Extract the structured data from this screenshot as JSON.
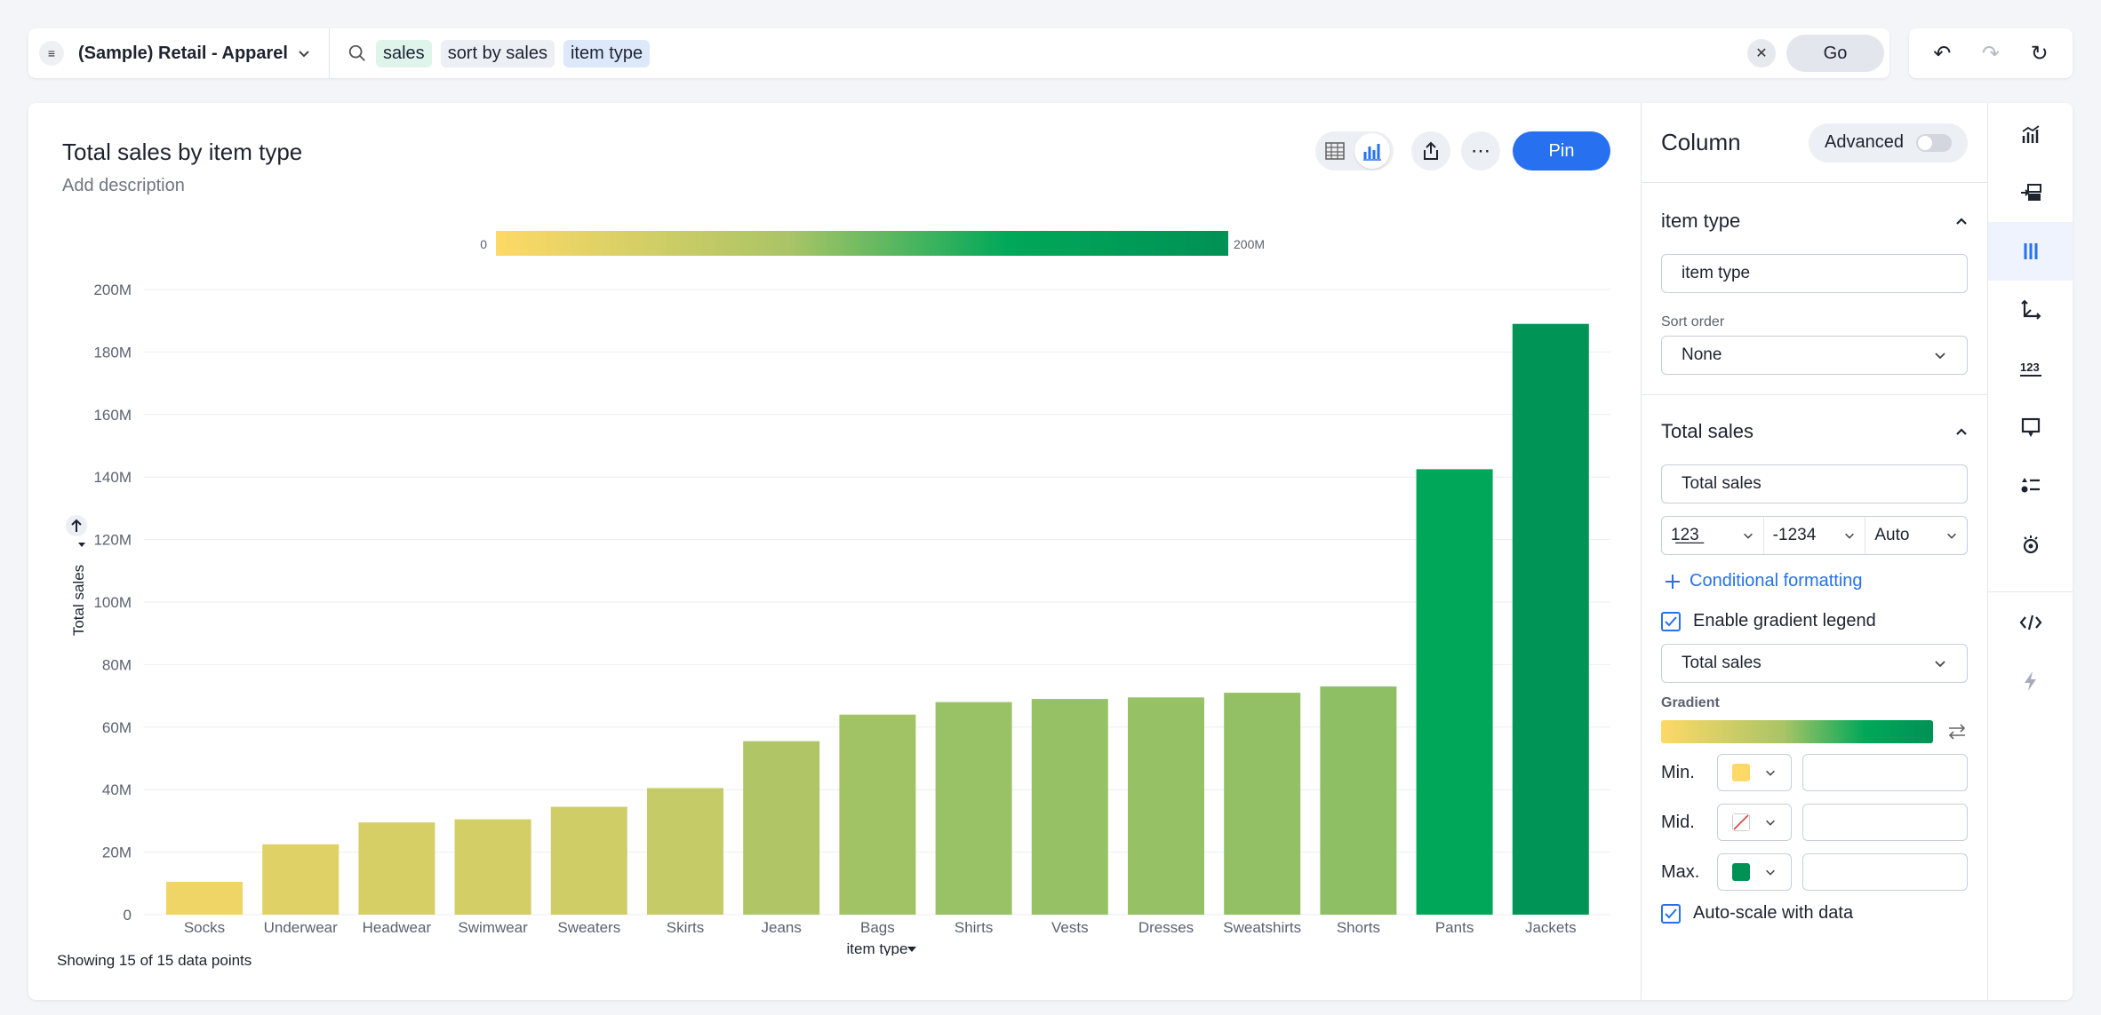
{
  "search": {
    "datasource": "(Sample) Retail - Apparel",
    "tokens": [
      "sales",
      "sort by sales",
      "item type"
    ],
    "go_label": "Go"
  },
  "answer": {
    "title": "Total sales by item type",
    "description_placeholder": "Add description",
    "pin_label": "Pin",
    "footer": "Showing 15 of 15 data points"
  },
  "colors": {
    "accent": "#2770ef",
    "gradient_min": "#fed966",
    "gradient_max": "#009155"
  },
  "chart_data": {
    "type": "bar",
    "categories": [
      "Socks",
      "Underwear",
      "Headwear",
      "Swimwear",
      "Sweaters",
      "Skirts",
      "Jeans",
      "Bags",
      "Shirts",
      "Vests",
      "Dresses",
      "Sweatshirts",
      "Shorts",
      "Pants",
      "Jackets"
    ],
    "values": [
      10.5,
      22.5,
      29.5,
      30.5,
      34.5,
      40.5,
      55.5,
      64,
      68,
      69,
      69.5,
      71,
      73,
      142.5,
      189
    ],
    "value_unit": "M",
    "xlabel": "item type",
    "ylabel": "Total sales",
    "ylim": [
      0,
      200
    ],
    "yticks": [
      "0",
      "20M",
      "40M",
      "60M",
      "80M",
      "100M",
      "120M",
      "140M",
      "160M",
      "180M",
      "200M"
    ],
    "gradient_legend": {
      "min_label": "0",
      "max_label": "200M"
    },
    "grid": true
  },
  "panel": {
    "title": "Column",
    "advanced_label": "Advanced",
    "section1": {
      "header": "item type",
      "name_value": "item type",
      "sort_label": "Sort order",
      "sort_value": "None"
    },
    "section2": {
      "header": "Total sales",
      "name_value": "Total sales",
      "format_category": "1̲2̲3̲",
      "format_negative": "-1234",
      "format_units": "Auto",
      "conditional_label": "Conditional formatting",
      "gradient_legend_label": "Enable gradient legend",
      "gradient_column": "Total sales",
      "gradient_label": "Gradient",
      "min_label": "Min.",
      "mid_label": "Mid.",
      "max_label": "Max.",
      "autoscale_label": "Auto-scale with data"
    }
  },
  "rail_icons": [
    "chart-type-icon",
    "configure-icon",
    "column-settings-icon",
    "axes-icon",
    "number-format-icon",
    "tooltip-icon",
    "legend-icon",
    "spotter-icon",
    "embed-code-icon",
    "lightning-icon"
  ]
}
